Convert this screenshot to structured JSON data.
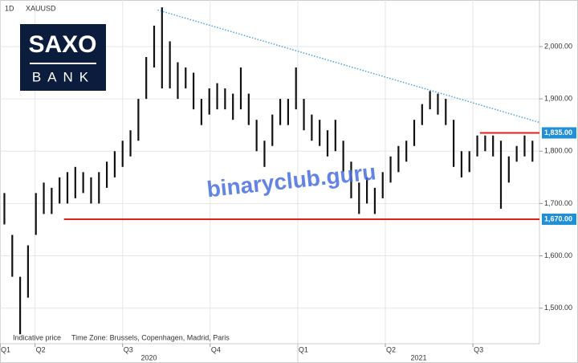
{
  "chart_data": {
    "type": "ohlc",
    "timeframe": "1D",
    "symbol": "XAUUSD",
    "logo": {
      "top": "SAXO",
      "bottom": "BANK"
    },
    "watermark": "binaryclub.guru",
    "footnote": "Indicative price",
    "timezone": "Time Zone: Brussels, Copenhagen, Madrid, Paris",
    "xlim": [
      0.6,
      6.76
    ],
    "ylim": [
      1432,
      2089
    ],
    "grid": true,
    "xticks": [
      {
        "value": 0.6,
        "label": "Q1"
      },
      {
        "value": 1,
        "label": "Q2"
      },
      {
        "value": 2,
        "label": "Q3"
      },
      {
        "value": 3,
        "label": "Q4"
      },
      {
        "value": 4,
        "label": "Q1"
      },
      {
        "value": 5,
        "label": "Q2"
      },
      {
        "value": 6,
        "label": "Q3"
      }
    ],
    "year_ticks": [
      {
        "value": 0,
        "label": "2020"
      },
      {
        "value": 4,
        "label": "2021"
      }
    ],
    "yticks": [
      {
        "value": 1500,
        "label": "1,500.00"
      },
      {
        "value": 1600,
        "label": "1,600.00"
      },
      {
        "value": 1700,
        "label": "1,700.00"
      },
      {
        "value": 1800,
        "label": "1,800.00"
      },
      {
        "value": 1900,
        "label": "1,900.00"
      },
      {
        "value": 2000,
        "label": "2,000.00"
      }
    ],
    "series": [
      {
        "name": "XAUUSD",
        "color": "#111111",
        "x": [
          0.65,
          0.74,
          0.83,
          0.92,
          1.01,
          1.1,
          1.19,
          1.28,
          1.37,
          1.46,
          1.55,
          1.64,
          1.73,
          1.82,
          1.91,
          2.0,
          2.09,
          2.18,
          2.27,
          2.36,
          2.45,
          2.54,
          2.63,
          2.72,
          2.81,
          2.9,
          2.99,
          3.08,
          3.17,
          3.26,
          3.35,
          3.44,
          3.53,
          3.62,
          3.71,
          3.8,
          3.89,
          3.98,
          4.07,
          4.16,
          4.25,
          4.34,
          4.43,
          4.52,
          4.61,
          4.7,
          4.79,
          4.88,
          4.97,
          5.06,
          5.15,
          5.24,
          5.33,
          5.42,
          5.51,
          5.6,
          5.69,
          5.78,
          5.87,
          5.96,
          6.05,
          6.14,
          6.23,
          6.32,
          6.41,
          6.5,
          6.59,
          6.68
        ],
        "high": [
          1720,
          1640,
          1560,
          1620,
          1720,
          1740,
          1730,
          1750,
          1760,
          1770,
          1760,
          1750,
          1760,
          1780,
          1800,
          1820,
          1840,
          1900,
          1980,
          2040,
          2075,
          2010,
          1970,
          1960,
          1950,
          1900,
          1920,
          1930,
          1920,
          1910,
          1960,
          1910,
          1860,
          1820,
          1870,
          1900,
          1900,
          1960,
          1900,
          1870,
          1860,
          1840,
          1860,
          1820,
          1780,
          1740,
          1750,
          1730,
          1760,
          1790,
          1810,
          1820,
          1860,
          1890,
          1915,
          1910,
          1900,
          1860,
          1800,
          1800,
          1830,
          1830,
          1830,
          1820,
          1790,
          1810,
          1830,
          1820
        ],
        "low": [
          1660,
          1560,
          1450,
          1520,
          1640,
          1680,
          1680,
          1700,
          1700,
          1710,
          1720,
          1700,
          1700,
          1730,
          1750,
          1770,
          1790,
          1820,
          1900,
          1960,
          1920,
          1920,
          1900,
          1920,
          1880,
          1850,
          1870,
          1880,
          1880,
          1860,
          1880,
          1850,
          1800,
          1770,
          1810,
          1850,
          1850,
          1880,
          1840,
          1820,
          1810,
          1790,
          1800,
          1760,
          1710,
          1680,
          1700,
          1680,
          1710,
          1740,
          1760,
          1780,
          1810,
          1850,
          1880,
          1870,
          1850,
          1770,
          1750,
          1760,
          1790,
          1800,
          1790,
          1690,
          1740,
          1780,
          1790,
          1780
        ]
      }
    ],
    "levels": [
      {
        "value": 1835,
        "label": "1,835.00",
        "from": 6.08,
        "color": "#e02020"
      },
      {
        "value": 1670,
        "label": "1,670.00",
        "from": 1.33,
        "color": "#e02020"
      }
    ],
    "trendline": {
      "x": [
        2.4,
        6.76
      ],
      "y": [
        2070,
        1855
      ],
      "color": "#4aa3e0"
    }
  }
}
